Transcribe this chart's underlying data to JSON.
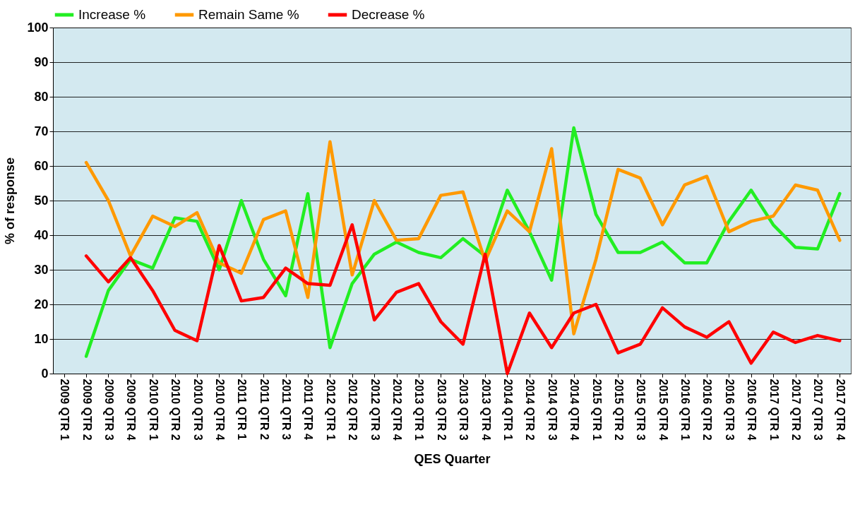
{
  "chart_data": {
    "type": "line",
    "xlabel": "QES Quarter",
    "ylabel": "% of response",
    "categories": [
      "2009 QTR 1",
      "2009 QTR 2",
      "2009 QTR 3",
      "2009 QTR 4",
      "2010 QTR 1",
      "2010 QTR 2",
      "2010 QTR 3",
      "2010 QTR 4",
      "2011 QTR 1",
      "2011 QTR 2",
      "2011 QTR 3",
      "2011 QTR 4",
      "2012 QTR 1",
      "2012 QTR 2",
      "2012 QTR 3",
      "2012 QTR 4",
      "2013 QTR 1",
      "2013 QTR 2",
      "2013 QTR 3",
      "2013 QTR 4",
      "2014 QTR 1",
      "2014 QTR 2",
      "2014 QTR 3",
      "2014 QTR 4",
      "2015 QTR 1",
      "2015 QTR 2",
      "2015 QTR 3",
      "2015 QTR 4",
      "2016 QTR 1",
      "2016 QTR 2",
      "2016 QTR 3",
      "2016 QTR 4",
      "2017 QTR 1",
      "2017 QTR 2",
      "2017 QTR 3",
      "2017 QTR 4"
    ],
    "series": [
      {
        "name": "Increase %",
        "color": "#22ee22",
        "values": [
          null,
          5,
          24,
          33,
          30.5,
          45,
          44,
          30,
          50,
          33,
          22.5,
          52,
          7.5,
          26,
          34.5,
          38,
          35,
          33.5,
          39,
          34,
          53,
          41,
          27,
          71,
          46,
          35,
          35,
          38,
          32,
          32,
          44,
          53,
          43,
          36.5,
          36,
          52
        ]
      },
      {
        "name": "Remain Same %",
        "color": "#ff9900",
        "values": [
          null,
          61,
          50,
          34,
          45.5,
          42.5,
          46.5,
          32,
          29,
          44.5,
          47,
          22,
          67,
          28.5,
          50,
          38.5,
          39,
          51.5,
          52.5,
          32.5,
          47,
          41,
          65,
          11.5,
          33,
          59,
          56.5,
          43,
          54.5,
          57,
          41,
          44,
          45.5,
          54.5,
          53,
          38.5
        ]
      },
      {
        "name": "Decrease %",
        "color": "#ff0000",
        "values": [
          null,
          34,
          26.5,
          33.5,
          24,
          12.5,
          9.5,
          37,
          21,
          22,
          30.5,
          26,
          25.5,
          43,
          15.5,
          23.5,
          26,
          15,
          8.5,
          34.5,
          0,
          17.5,
          7.5,
          17.5,
          20,
          6,
          8.5,
          19,
          13.5,
          10.5,
          15,
          3,
          12,
          9,
          11,
          9.5
        ]
      }
    ],
    "ylim": [
      0,
      100
    ],
    "yticks": [
      0,
      10,
      20,
      30,
      40,
      50,
      60,
      70,
      80,
      90,
      100
    ],
    "grid": "y",
    "legend": "top left",
    "marker": "none",
    "line_style": "solid"
  }
}
